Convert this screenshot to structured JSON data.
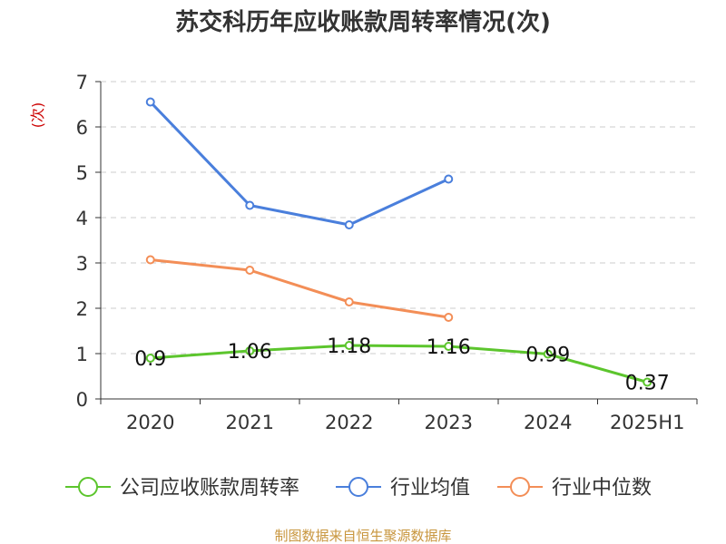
{
  "chart_data": {
    "type": "line",
    "title": "苏交科历年应收账款周转率情况(次)",
    "ylabel": "(次)",
    "xlabel": "",
    "categories": [
      "2020",
      "2021",
      "2022",
      "2023",
      "2024",
      "2025H1"
    ],
    "ylim": [
      0,
      7
    ],
    "yticks": [
      0,
      1,
      2,
      3,
      4,
      5,
      6,
      7
    ],
    "grid": true,
    "legend_position": "bottom",
    "series": [
      {
        "name": "公司应收账款周转率",
        "color": "#5cc52d",
        "values": [
          0.9,
          1.06,
          1.18,
          1.16,
          0.99,
          0.37
        ],
        "labels": [
          "0.9",
          "1.06",
          "1.18",
          "1.16",
          "0.99",
          "0.37"
        ]
      },
      {
        "name": "行业均值",
        "color": "#4a7fdc",
        "values": [
          6.55,
          4.27,
          3.84,
          4.85,
          null,
          null
        ]
      },
      {
        "name": "行业中位数",
        "color": "#f38e57",
        "values": [
          3.07,
          2.84,
          2.14,
          1.8,
          null,
          null
        ]
      }
    ],
    "source": "制图数据来自恒生聚源数据库"
  }
}
